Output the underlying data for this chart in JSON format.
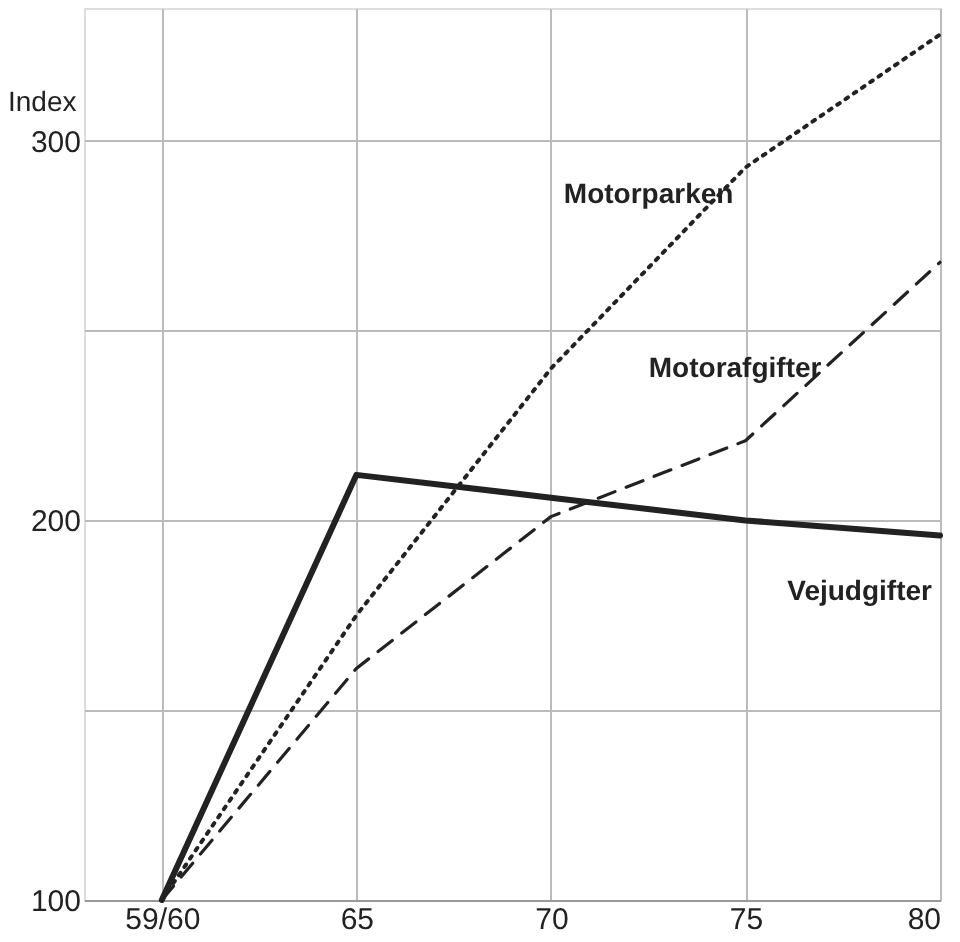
{
  "chart_data": {
    "type": "line",
    "ylabel": "Index",
    "x": [
      60,
      65,
      70,
      75,
      80
    ],
    "xlim": [
      58,
      80
    ],
    "xticks": [
      {
        "value": 60,
        "label": "59/60"
      },
      65,
      70,
      75,
      80
    ],
    "ylim": [
      100,
      335
    ],
    "yticks": [
      100,
      {
        "value": 150,
        "label": null
      },
      200,
      {
        "value": 250,
        "label": null
      },
      300
    ],
    "grid": true,
    "series": [
      {
        "name": "Motorparken",
        "color": "#222222",
        "line_style": "dotted",
        "values": [
          100,
          175,
          240,
          293,
          328
        ]
      },
      {
        "name": "Motorafgifter",
        "color": "#222222",
        "line_style": "dashed",
        "values": [
          100,
          161,
          201,
          221,
          268
        ]
      },
      {
        "name": "Vejudgifter",
        "color": "#222222",
        "line_style": "solid",
        "values": [
          100,
          212,
          206,
          200,
          196
        ]
      }
    ]
  }
}
